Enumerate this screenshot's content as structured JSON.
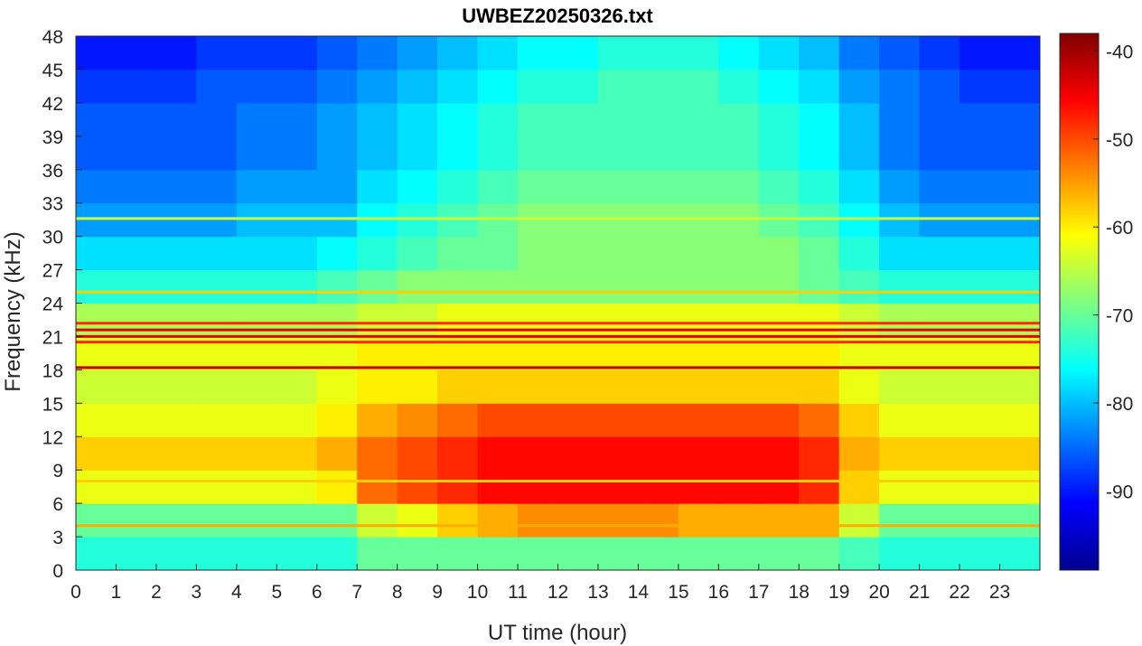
{
  "chart_data": {
    "type": "heatmap",
    "title": "UWBEZ20250326.txt",
    "xlabel": "UT time (hour)",
    "ylabel": "Frequency (kHz)",
    "xlim": [
      0,
      24
    ],
    "ylim": [
      0,
      48
    ],
    "x_ticks": [
      0,
      1,
      2,
      3,
      4,
      5,
      6,
      7,
      8,
      9,
      10,
      11,
      12,
      13,
      14,
      15,
      16,
      17,
      18,
      19,
      20,
      21,
      22,
      23
    ],
    "y_ticks": [
      0,
      3,
      6,
      9,
      12,
      15,
      18,
      21,
      24,
      27,
      30,
      33,
      36,
      39,
      42,
      45,
      48
    ],
    "colorbar": {
      "ticks": [
        -40,
        -50,
        -60,
        -70,
        -80,
        -90
      ],
      "range": [
        -99,
        -38
      ],
      "colormap": "jet"
    },
    "x": [
      0.5,
      1.5,
      2.5,
      3.5,
      4.5,
      5.5,
      6.5,
      7.5,
      8.5,
      9.5,
      10.5,
      11.5,
      12.5,
      13.5,
      14.5,
      15.5,
      16.5,
      17.5,
      18.5,
      19.5,
      20.5,
      21.5,
      22.5,
      23.5
    ],
    "y": [
      1.5,
      4.5,
      7.5,
      10.5,
      13.5,
      16.5,
      19.5,
      22.5,
      25.5,
      28.5,
      31.5,
      34.5,
      37.5,
      40.5,
      43.5,
      46.5
    ],
    "z": [
      [
        -74,
        -74,
        -74,
        -74,
        -74,
        -74,
        -74,
        -70,
        -70,
        -70,
        -70,
        -70,
        -70,
        -70,
        -70,
        -70,
        -70,
        -70,
        -70,
        -72,
        -74,
        -74,
        -74,
        -74
      ],
      [
        -70,
        -70,
        -70,
        -70,
        -70,
        -70,
        -70,
        -64,
        -62,
        -58,
        -56,
        -54,
        -54,
        -54,
        -54,
        -56,
        -56,
        -56,
        -56,
        -64,
        -70,
        -70,
        -70,
        -70
      ],
      [
        -62,
        -62,
        -62,
        -62,
        -62,
        -62,
        -60,
        -52,
        -50,
        -48,
        -46,
        -46,
        -46,
        -46,
        -46,
        -46,
        -46,
        -46,
        -48,
        -58,
        -62,
        -62,
        -62,
        -62
      ],
      [
        -58,
        -58,
        -58,
        -58,
        -58,
        -58,
        -56,
        -52,
        -50,
        -48,
        -46,
        -46,
        -46,
        -46,
        -46,
        -46,
        -46,
        -46,
        -48,
        -56,
        -58,
        -58,
        -58,
        -58
      ],
      [
        -62,
        -62,
        -62,
        -62,
        -62,
        -62,
        -60,
        -56,
        -54,
        -52,
        -50,
        -50,
        -50,
        -50,
        -50,
        -50,
        -50,
        -50,
        -52,
        -58,
        -62,
        -62,
        -62,
        -62
      ],
      [
        -64,
        -64,
        -64,
        -64,
        -64,
        -64,
        -62,
        -60,
        -60,
        -58,
        -58,
        -58,
        -58,
        -58,
        -58,
        -58,
        -58,
        -58,
        -58,
        -62,
        -64,
        -64,
        -64,
        -64
      ],
      [
        -62,
        -62,
        -62,
        -62,
        -62,
        -62,
        -62,
        -60,
        -60,
        -60,
        -60,
        -60,
        -60,
        -60,
        -60,
        -60,
        -60,
        -60,
        -60,
        -62,
        -62,
        -62,
        -62,
        -62
      ],
      [
        -66,
        -66,
        -66,
        -66,
        -66,
        -66,
        -66,
        -64,
        -64,
        -62,
        -62,
        -62,
        -62,
        -62,
        -62,
        -62,
        -62,
        -62,
        -62,
        -64,
        -66,
        -66,
        -66,
        -66
      ],
      [
        -74,
        -74,
        -74,
        -74,
        -74,
        -74,
        -72,
        -70,
        -68,
        -68,
        -68,
        -68,
        -68,
        -68,
        -68,
        -68,
        -68,
        -68,
        -70,
        -72,
        -74,
        -74,
        -74,
        -74
      ],
      [
        -78,
        -78,
        -78,
        -78,
        -78,
        -78,
        -76,
        -74,
        -72,
        -70,
        -70,
        -68,
        -68,
        -68,
        -68,
        -68,
        -68,
        -68,
        -70,
        -74,
        -78,
        -78,
        -78,
        -78
      ],
      [
        -82,
        -82,
        -82,
        -82,
        -80,
        -80,
        -80,
        -76,
        -74,
        -72,
        -70,
        -68,
        -68,
        -68,
        -68,
        -68,
        -68,
        -70,
        -72,
        -76,
        -80,
        -82,
        -82,
        -82
      ],
      [
        -84,
        -84,
        -84,
        -84,
        -82,
        -82,
        -82,
        -78,
        -76,
        -74,
        -72,
        -70,
        -70,
        -70,
        -70,
        -70,
        -70,
        -72,
        -74,
        -78,
        -82,
        -84,
        -84,
        -84
      ],
      [
        -86,
        -86,
        -86,
        -86,
        -84,
        -84,
        -82,
        -80,
        -78,
        -76,
        -74,
        -72,
        -72,
        -72,
        -72,
        -72,
        -72,
        -74,
        -76,
        -80,
        -84,
        -86,
        -86,
        -86
      ],
      [
        -86,
        -86,
        -86,
        -86,
        -84,
        -84,
        -82,
        -80,
        -78,
        -76,
        -74,
        -72,
        -72,
        -72,
        -72,
        -72,
        -72,
        -74,
        -76,
        -80,
        -84,
        -86,
        -86,
        -86
      ],
      [
        -88,
        -88,
        -88,
        -86,
        -86,
        -86,
        -84,
        -82,
        -80,
        -78,
        -76,
        -74,
        -74,
        -72,
        -72,
        -72,
        -74,
        -76,
        -78,
        -82,
        -84,
        -86,
        -88,
        -88
      ],
      [
        -90,
        -90,
        -90,
        -88,
        -88,
        -88,
        -86,
        -84,
        -82,
        -80,
        -78,
        -76,
        -76,
        -74,
        -74,
        -74,
        -76,
        -78,
        -80,
        -84,
        -86,
        -88,
        -90,
        -90
      ]
    ],
    "lines": [
      {
        "freq": 4.0,
        "level": -56
      },
      {
        "freq": 8.0,
        "level": -58
      },
      {
        "freq": 18.2,
        "level": -42
      },
      {
        "freq": 20.5,
        "level": -48
      },
      {
        "freq": 21.0,
        "level": -44
      },
      {
        "freq": 21.6,
        "level": -44
      },
      {
        "freq": 22.2,
        "level": -48
      },
      {
        "freq": 25.0,
        "level": -58
      },
      {
        "freq": 31.6,
        "level": -64
      }
    ]
  }
}
